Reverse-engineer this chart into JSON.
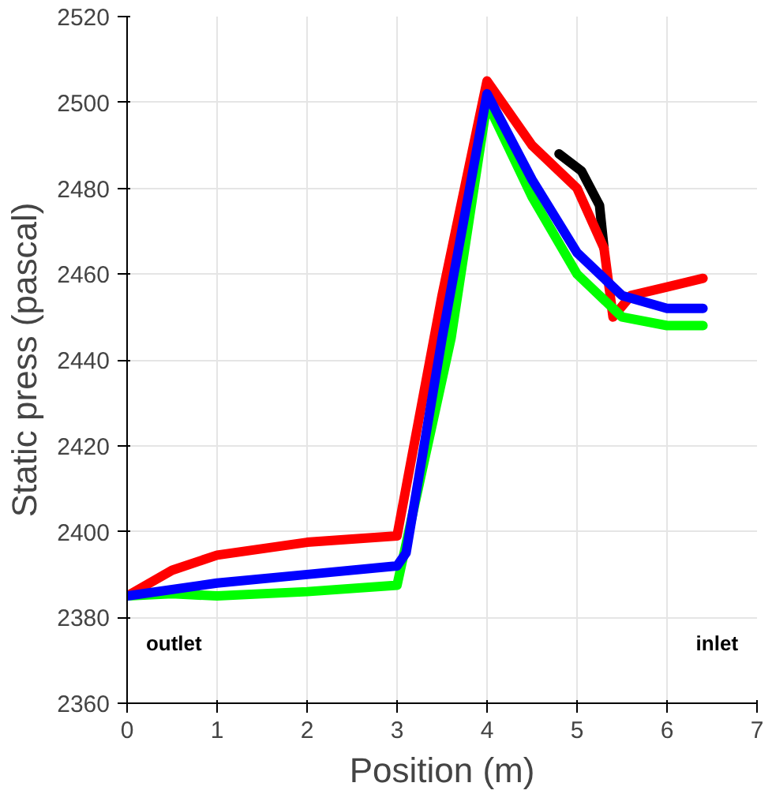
{
  "chart_data": {
    "type": "line",
    "xlabel": "Position (m)",
    "ylabel": "Static press (pascal)",
    "annotations": [
      "outlet",
      "inlet"
    ],
    "xlim": [
      0,
      7
    ],
    "xticks": [
      0,
      1,
      2,
      3,
      4,
      5,
      6,
      7
    ],
    "ylim": [
      2360,
      2520
    ],
    "yticks": [
      2360,
      2380,
      2400,
      2420,
      2440,
      2460,
      2480,
      2500,
      2520
    ],
    "grid": true,
    "marker": "none",
    "line_style": "solid",
    "series": [
      {
        "color": "#000000",
        "x": [
          4.8,
          5.05,
          5.25,
          5.3
        ],
        "values": [
          2488,
          2484,
          2476,
          2466
        ]
      },
      {
        "color": "#ff0000",
        "x": [
          0,
          0.5,
          1,
          2,
          3,
          3.5,
          4,
          4.5,
          5,
          5.3,
          5.4,
          5.6,
          6,
          6.4
        ],
        "values": [
          2385,
          2391,
          2394.5,
          2397.5,
          2399,
          2455,
          2505,
          2490,
          2480,
          2466,
          2450,
          2455,
          2457,
          2459
        ]
      },
      {
        "color": "#00ff00",
        "x": [
          0,
          0.5,
          1,
          2,
          3,
          3.6,
          4,
          4.5,
          5,
          5.5,
          6,
          6.4
        ],
        "values": [
          2385,
          2385.5,
          2385,
          2386,
          2387.5,
          2445,
          2500,
          2478,
          2460,
          2450,
          2448,
          2448
        ]
      },
      {
        "color": "#0000ff",
        "x": [
          0,
          1,
          2,
          3,
          3.1,
          3.5,
          4,
          4.5,
          5,
          5.5,
          6,
          6.4
        ],
        "values": [
          2385,
          2388,
          2390,
          2392,
          2395,
          2445,
          2502,
          2482,
          2465,
          2455,
          2452,
          2452
        ]
      }
    ]
  }
}
